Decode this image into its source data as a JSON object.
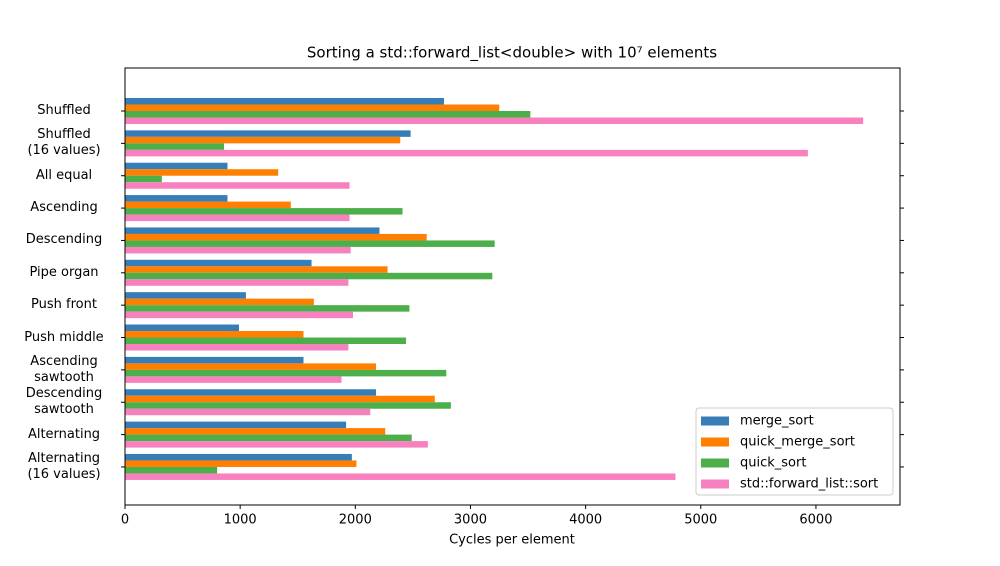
{
  "chart_data": {
    "type": "barh",
    "title": "Sorting a std::forward_list<double> with 10⁷ elements",
    "x_label": "Cycles per element",
    "categories": [
      "Shuffled",
      "Shuffled\n(16 values)",
      "All equal",
      "Ascending",
      "Descending",
      "Pipe organ",
      "Push front",
      "Push middle",
      "Ascending\nsawtooth",
      "Descending\nsawtooth",
      "Alternating",
      "Alternating\n(16 values)"
    ],
    "series": [
      {
        "name": "merge_sort",
        "color": "#377eb8",
        "values": [
          2770,
          2480,
          890,
          890,
          2210,
          1620,
          1050,
          990,
          1550,
          2180,
          1920,
          1970
        ]
      },
      {
        "name": "quick_merge_sort",
        "color": "#ff7f00",
        "values": [
          3250,
          2390,
          1330,
          1440,
          2620,
          2280,
          1640,
          1550,
          2180,
          2690,
          2260,
          2010
        ]
      },
      {
        "name": "quick_sort",
        "color": "#4daf4a",
        "values": [
          3520,
          860,
          320,
          2410,
          3210,
          3190,
          2470,
          2440,
          2790,
          2830,
          2490,
          800
        ]
      },
      {
        "name": "std::forward_list::sort",
        "color": "#f781bf",
        "values": [
          6410,
          5930,
          1950,
          1950,
          1960,
          1940,
          1980,
          1940,
          1880,
          2130,
          2630,
          4780
        ]
      }
    ],
    "xlim": [
      0,
      6730
    ],
    "xticks": [
      0,
      1000,
      2000,
      3000,
      4000,
      5000,
      6000
    ],
    "legend": "lower right"
  }
}
